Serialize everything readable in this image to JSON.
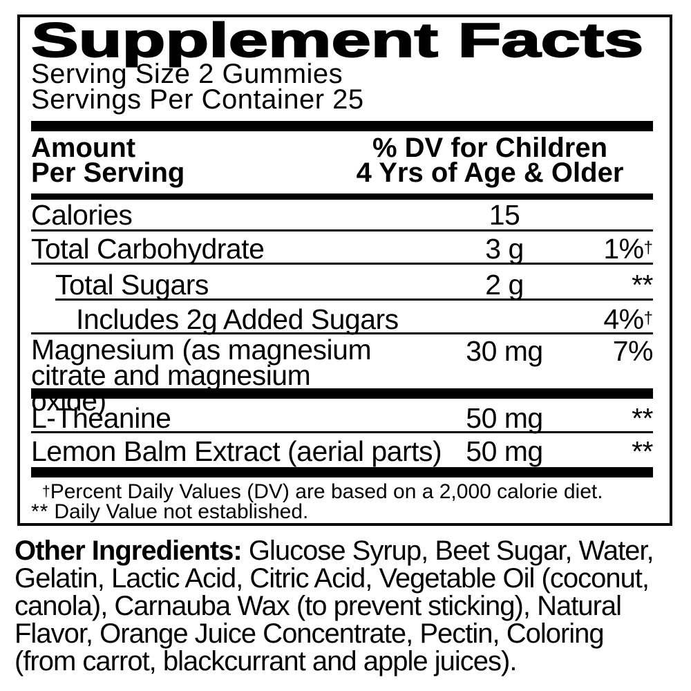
{
  "supplement_facts": {
    "title": "Supplement Facts",
    "serving_size": "Serving Size 2 Gummies",
    "servings_per_container": "Servings Per Container 25",
    "columns": {
      "amount_line1": "Amount",
      "amount_line2": "Per Serving",
      "dv_line1": "% DV for Children",
      "dv_line2": "4 Yrs of Age & Older"
    },
    "rows": [
      {
        "name": "Calories",
        "amount": "15",
        "dv": ""
      },
      {
        "name": "Total Carbohydrate",
        "amount": "3 g",
        "dv": "1%",
        "dv_sup": "†"
      },
      {
        "name": "Total Sugars",
        "amount": "2 g",
        "dv": "**"
      },
      {
        "name": "Includes 2g Added Sugars",
        "amount": "",
        "dv": "4%",
        "dv_sup": "†"
      },
      {
        "name": "Magnesium (as magnesium citrate and magnesium oxide)",
        "amount": "30 mg",
        "dv": "7%"
      },
      {
        "name": "L-Theanine",
        "amount": "50 mg",
        "dv": "**"
      },
      {
        "name": "Lemon Balm Extract (aerial parts)",
        "amount": "50 mg",
        "dv": "**"
      }
    ],
    "footnotes": [
      {
        "marker": "†",
        "text": "Percent Daily Values (DV) are based on a 2,000 calorie diet."
      },
      {
        "marker": "**",
        "text": "Daily Value not established."
      }
    ]
  },
  "other_ingredients": {
    "label": "Other Ingredients:",
    "lines": [
      "Glucose Syrup, Beet Sugar, Water,",
      "Gelatin, Lactic Acid, Citric Acid, Vegetable Oil (coconut,",
      "canola), Carnauba Wax (to prevent sticking), Natural",
      "Flavor, Orange Juice Concentrate, Pectin, Coloring",
      "(from carrot, blackcurrant and apple juices)."
    ]
  },
  "colors": {
    "text": "#000000",
    "background": "#ffffff",
    "rule": "#000000"
  }
}
